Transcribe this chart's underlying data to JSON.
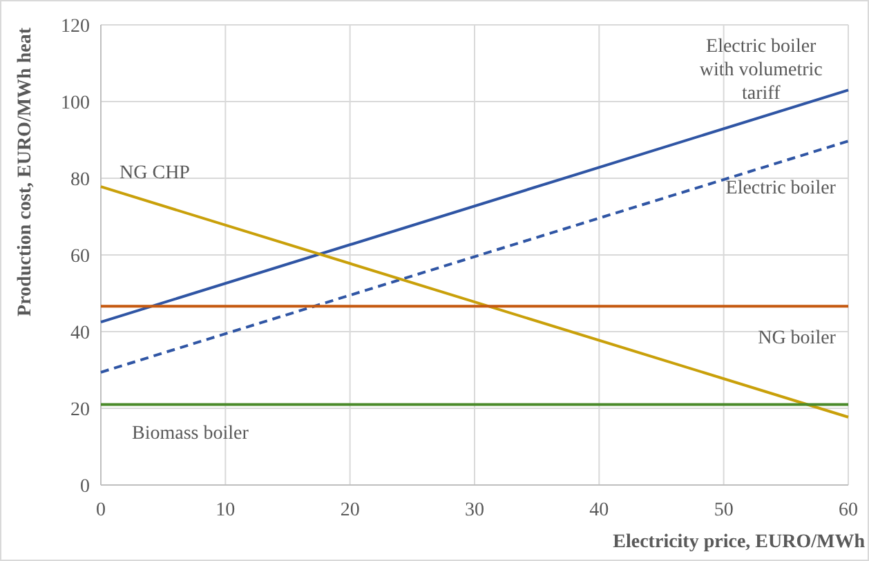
{
  "chart_data": {
    "type": "line",
    "xlabel": "Electricity price, EURO/MWh",
    "ylabel": "Production cost, EURO/MWh heat",
    "x": [
      0,
      60
    ],
    "series": [
      {
        "name": "Electric boiler with volumetric tariff",
        "color": "#2f55a4",
        "values": [
          42.5,
          103
        ],
        "line_style": "solid"
      },
      {
        "name": "Electric boiler",
        "color": "#2f55a4",
        "values": [
          29.4,
          89.7
        ],
        "line_style": "dashed"
      },
      {
        "name": "NG CHP",
        "color": "#c9a00a",
        "values": [
          77.8,
          17.7
        ],
        "line_style": "solid"
      },
      {
        "name": "NG boiler",
        "color": "#c55a11",
        "values": [
          46.6,
          46.6
        ],
        "line_style": "solid"
      },
      {
        "name": "Biomass boiler",
        "color": "#4a8a2a",
        "values": [
          21,
          21
        ],
        "line_style": "solid"
      }
    ],
    "xlim": [
      0,
      60
    ],
    "xticks": [
      0,
      10,
      20,
      30,
      40,
      50,
      60
    ],
    "ylim": [
      0,
      120
    ],
    "yticks": [
      0,
      20,
      40,
      60,
      80,
      100,
      120
    ],
    "grid": true,
    "legend": false
  }
}
